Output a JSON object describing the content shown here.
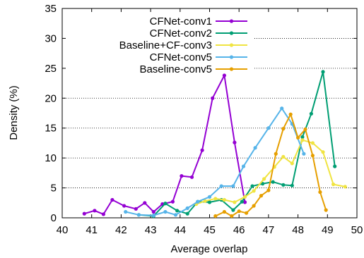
{
  "chart_data": {
    "type": "line",
    "xlabel": "Average overlap",
    "ylabel": "Density (%)",
    "xlim": [
      40,
      50
    ],
    "ylim": [
      0,
      35
    ],
    "xticks": [
      "40",
      "41",
      "42",
      "43",
      "44",
      "45",
      "46",
      "47",
      "48",
      "49",
      "50"
    ],
    "yticks": [
      "0",
      "5",
      "10",
      "15",
      "20",
      "25",
      "30",
      "35"
    ],
    "grid": "horizontal dotted",
    "legend_position": "top-left",
    "series": [
      {
        "name": "CFNet-conv1",
        "color": "#9400d3",
        "points": [
          [
            40.75,
            0.7
          ],
          [
            41.1,
            1.2
          ],
          [
            41.4,
            0.6
          ],
          [
            41.7,
            3.0
          ],
          [
            42.1,
            2.0
          ],
          [
            42.5,
            1.5
          ],
          [
            42.8,
            2.5
          ],
          [
            43.1,
            1.0
          ],
          [
            43.4,
            2.3
          ],
          [
            43.75,
            2.7
          ],
          [
            44.05,
            7.0
          ],
          [
            44.4,
            6.8
          ],
          [
            44.75,
            11.3
          ],
          [
            45.1,
            20.0
          ],
          [
            45.5,
            23.8
          ],
          [
            45.85,
            12.6
          ],
          [
            46.2,
            2.6
          ]
        ]
      },
      {
        "name": "CFNet-conv2",
        "color": "#009e73",
        "points": [
          [
            42.6,
            0.5
          ],
          [
            43.1,
            0.3
          ],
          [
            43.5,
            2.4
          ],
          [
            43.9,
            1.2
          ],
          [
            44.25,
            0.7
          ],
          [
            44.6,
            2.7
          ],
          [
            45.0,
            2.6
          ],
          [
            45.4,
            3.0
          ],
          [
            45.8,
            1.3
          ],
          [
            46.1,
            2.7
          ],
          [
            46.45,
            5.3
          ],
          [
            46.8,
            5.7
          ],
          [
            47.15,
            6.0
          ],
          [
            47.5,
            5.5
          ],
          [
            47.8,
            5.4
          ],
          [
            48.15,
            13.5
          ],
          [
            48.45,
            17.4
          ],
          [
            48.85,
            24.4
          ],
          [
            49.25,
            8.6
          ]
        ]
      },
      {
        "name": "Baseline+CF-conv3",
        "color": "#f0e442",
        "points": [
          [
            44.55,
            2.3
          ],
          [
            44.85,
            2.8
          ],
          [
            45.2,
            3.2
          ],
          [
            45.5,
            3.0
          ],
          [
            45.85,
            2.6
          ],
          [
            46.2,
            3.5
          ],
          [
            46.5,
            4.5
          ],
          [
            46.85,
            6.5
          ],
          [
            47.2,
            8.5
          ],
          [
            47.5,
            10.2
          ],
          [
            47.8,
            9.1
          ],
          [
            48.15,
            13.0
          ],
          [
            48.5,
            12.5
          ],
          [
            48.85,
            11.0
          ],
          [
            49.2,
            5.6
          ],
          [
            49.6,
            5.2
          ]
        ]
      },
      {
        "name": "CFNet-conv5",
        "color": "#56b4e9",
        "points": [
          [
            42.15,
            1.0
          ],
          [
            42.6,
            0.5
          ],
          [
            43.1,
            0.4
          ],
          [
            43.5,
            1.0
          ],
          [
            43.85,
            0.5
          ],
          [
            44.25,
            1.6
          ],
          [
            44.6,
            2.7
          ],
          [
            45.0,
            3.5
          ],
          [
            45.4,
            5.3
          ],
          [
            45.8,
            5.3
          ],
          [
            46.15,
            8.6
          ],
          [
            46.55,
            11.7
          ],
          [
            47.0,
            15.0
          ],
          [
            47.45,
            18.3
          ],
          [
            47.8,
            15.7
          ],
          [
            48.2,
            10.7
          ]
        ]
      },
      {
        "name": "Baseline-conv5",
        "color": "#e69f00",
        "points": [
          [
            45.2,
            0.3
          ],
          [
            45.5,
            1.0
          ],
          [
            45.75,
            0.3
          ],
          [
            46.0,
            1.1
          ],
          [
            46.25,
            0.8
          ],
          [
            46.5,
            2.0
          ],
          [
            46.75,
            3.7
          ],
          [
            47.0,
            4.6
          ],
          [
            47.25,
            10.7
          ],
          [
            47.5,
            14.9
          ],
          [
            47.75,
            17.3
          ],
          [
            48.0,
            13.4
          ],
          [
            48.25,
            14.8
          ],
          [
            48.5,
            10.4
          ],
          [
            48.75,
            4.3
          ],
          [
            48.95,
            1.3
          ]
        ]
      }
    ]
  }
}
